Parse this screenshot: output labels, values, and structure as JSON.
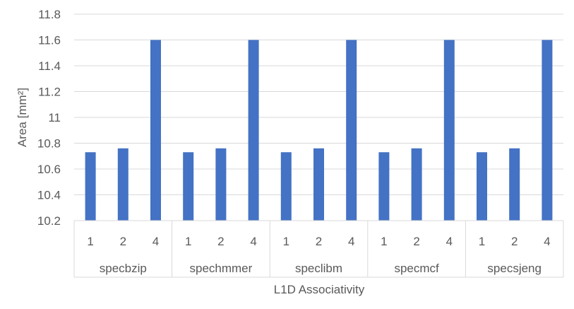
{
  "chart_data": {
    "type": "bar",
    "groups": [
      "specbzip",
      "spechmmer",
      "speclibm",
      "specmcf",
      "specsjeng"
    ],
    "categories": [
      "1",
      "2",
      "4"
    ],
    "series": [
      {
        "group": "specbzip",
        "values": [
          10.73,
          10.76,
          11.6
        ]
      },
      {
        "group": "spechmmer",
        "values": [
          10.73,
          10.76,
          11.6
        ]
      },
      {
        "group": "speclibm",
        "values": [
          10.73,
          10.76,
          11.6
        ]
      },
      {
        "group": "specmcf",
        "values": [
          10.73,
          10.76,
          11.6
        ]
      },
      {
        "group": "specsjeng",
        "values": [
          10.73,
          10.76,
          11.6
        ]
      }
    ],
    "xlabel": "L1D Associativity",
    "ylabel": "Area [mm²]",
    "ylim": [
      10.2,
      11.8
    ],
    "yticks": [
      "10.2",
      "10.4",
      "10.6",
      "10.8",
      "11",
      "11.2",
      "11.4",
      "11.6",
      "11.8"
    ],
    "grid": true,
    "bar_color": "#4472C4",
    "gridline_color": "#D9D9D9"
  }
}
